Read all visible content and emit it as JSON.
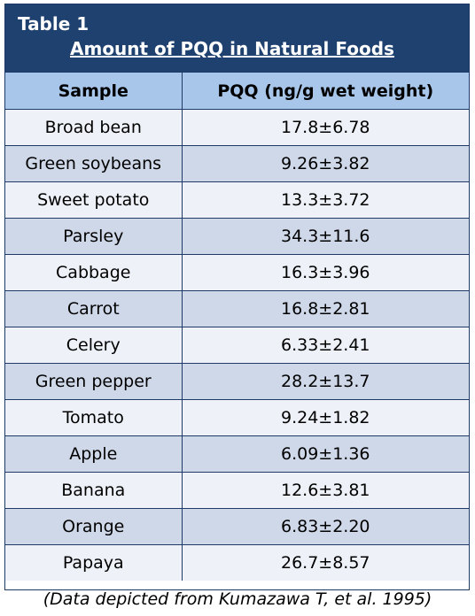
{
  "table": {
    "label": "Table 1",
    "title": "Amount of PQQ in Natural Foods",
    "headers": [
      "Sample",
      "PQQ (ng/g wet weight)"
    ],
    "rows": [
      [
        "Broad bean",
        "17.8±6.78"
      ],
      [
        "Green soybeans",
        "9.26±3.82"
      ],
      [
        "Sweet potato",
        "13.3±3.72"
      ],
      [
        "Parsley",
        "34.3±11.6"
      ],
      [
        "Cabbage",
        "16.3±3.96"
      ],
      [
        "Carrot",
        "16.8±2.81"
      ],
      [
        "Celery",
        "6.33±2.41"
      ],
      [
        "Green pepper",
        "28.2±13.7"
      ],
      [
        "Tomato",
        "9.24±1.82"
      ],
      [
        "Apple",
        "6.09±1.36"
      ],
      [
        "Banana",
        "12.6±3.81"
      ],
      [
        "Orange",
        "6.83±2.20"
      ],
      [
        "Papaya",
        "26.7±8.57"
      ]
    ]
  },
  "caption": "(Data depicted from Kumazawa T, et al. 1995)",
  "colors": {
    "header_bg": "#1f4170",
    "column_header_bg": "#a7c6ea",
    "row_light": "#eef2f8",
    "row_dark": "#cfd8e8"
  }
}
